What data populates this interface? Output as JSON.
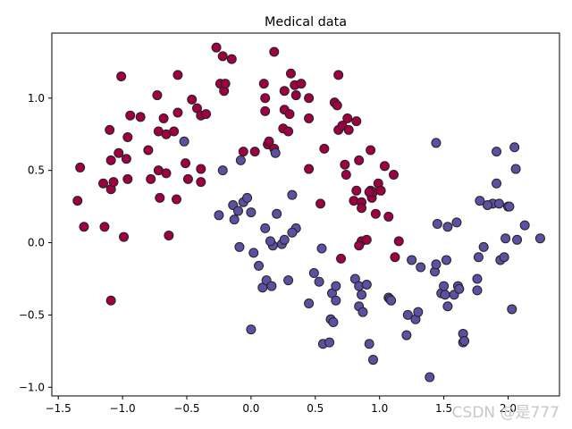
{
  "chart_data": {
    "type": "scatter",
    "title": "Medical data",
    "xlabel": "",
    "ylabel": "",
    "xlim": [
      -1.55,
      2.4
    ],
    "ylim": [
      -1.06,
      1.45
    ],
    "xticks": [
      -1.5,
      -1.0,
      -0.5,
      0.0,
      0.5,
      1.0,
      1.5,
      2.0
    ],
    "yticks": [
      -1.0,
      -0.5,
      0.0,
      0.5,
      1.0
    ],
    "grid": false,
    "series": [
      {
        "class": 1,
        "color": "#9e0142",
        "points": [
          [
            -1.33,
            0.52
          ],
          [
            -1.3,
            0.11
          ],
          [
            -1.35,
            0.29
          ],
          [
            -1.15,
            0.41
          ],
          [
            -1.14,
            0.11
          ],
          [
            -1.1,
            0.78
          ],
          [
            -1.09,
            0.57
          ],
          [
            -1.09,
            0.37
          ],
          [
            -1.07,
            0.42
          ],
          [
            -1.03,
            0.62
          ],
          [
            -1.01,
            1.15
          ],
          [
            -0.99,
            0.04
          ],
          [
            -0.96,
            0.73
          ],
          [
            -0.96,
            0.44
          ],
          [
            -0.97,
            0.58
          ],
          [
            -0.94,
            0.88
          ],
          [
            -0.86,
            0.87
          ],
          [
            -0.8,
            0.64
          ],
          [
            -0.78,
            0.44
          ],
          [
            -0.73,
            1.02
          ],
          [
            -0.72,
            0.77
          ],
          [
            -0.72,
            0.5
          ],
          [
            -0.71,
            0.31
          ],
          [
            -0.68,
            0.86
          ],
          [
            -0.66,
            0.75
          ],
          [
            -0.66,
            0.48
          ],
          [
            -0.64,
            0.05
          ],
          [
            -0.6,
            0.77
          ],
          [
            -0.58,
            0.3
          ],
          [
            -0.57,
            0.9
          ],
          [
            -0.57,
            1.16
          ],
          [
            -0.51,
            0.55
          ],
          [
            -0.49,
            0.44
          ],
          [
            -0.46,
            0.99
          ],
          [
            -0.42,
            0.93
          ],
          [
            -0.39,
            0.88
          ],
          [
            -0.39,
            0.51
          ],
          [
            -0.39,
            0.42
          ],
          [
            -0.35,
            0.89
          ],
          [
            -0.27,
            1.35
          ],
          [
            -0.24,
            1.1
          ],
          [
            -0.22,
            1.29
          ],
          [
            -0.21,
            1.05
          ],
          [
            -0.2,
            1.1
          ],
          [
            -0.15,
            1.27
          ],
          [
            -0.06,
            0.63
          ],
          [
            0.03,
            0.63
          ],
          [
            0.1,
            1.1
          ],
          [
            0.11,
            0.91
          ],
          [
            0.11,
            1.0
          ],
          [
            0.13,
            0.68
          ],
          [
            0.14,
            0.7
          ],
          [
            0.18,
            1.32
          ],
          [
            0.18,
            0.65
          ],
          [
            0.25,
            0.79
          ],
          [
            0.26,
            1.05
          ],
          [
            0.26,
            0.92
          ],
          [
            0.29,
            0.77
          ],
          [
            0.3,
            0.89
          ],
          [
            0.31,
            1.17
          ],
          [
            0.34,
            1.09
          ],
          [
            0.35,
            1.02
          ],
          [
            0.39,
            1.1
          ],
          [
            0.45,
            0.86
          ],
          [
            0.45,
            1.0
          ],
          [
            0.45,
            0.51
          ],
          [
            0.54,
            0.27
          ],
          [
            0.57,
            0.65
          ],
          [
            0.65,
            0.97
          ],
          [
            0.67,
            0.95
          ],
          [
            0.68,
            0.78
          ],
          [
            0.68,
            1.16
          ],
          [
            0.71,
            0.81
          ],
          [
            0.73,
            0.54
          ],
          [
            0.74,
            0.47
          ],
          [
            0.75,
            0.86
          ],
          [
            0.76,
            0.78
          ],
          [
            0.8,
            0.29
          ],
          [
            0.82,
            0.84
          ],
          [
            0.82,
            0.36
          ],
          [
            0.84,
            0.57
          ],
          [
            0.86,
            0.28
          ],
          [
            0.86,
            0.24
          ],
          [
            0.86,
            0.01
          ],
          [
            0.84,
            -0.02
          ],
          [
            0.7,
            -0.11
          ],
          [
            0.93,
            0.64
          ],
          [
            0.93,
            0.36
          ],
          [
            0.94,
            0.31
          ],
          [
            0.95,
            0.35
          ],
          [
            0.97,
            0.2
          ],
          [
            0.99,
            0.41
          ],
          [
            1.01,
            0.36
          ],
          [
            1.04,
            0.53
          ],
          [
            1.07,
            0.18
          ],
          [
            1.12,
            -0.1
          ],
          [
            1.15,
            0.01
          ],
          [
            1.11,
            0.47
          ],
          [
            -1.09,
            -0.4
          ],
          [
            0.92,
            0.35
          ],
          [
            0.9,
            0.02
          ]
        ]
      },
      {
        "class": 0,
        "color": "#5e4fa2",
        "points": [
          [
            -0.52,
            0.7
          ],
          [
            -0.22,
            0.5
          ],
          [
            -0.25,
            0.19
          ],
          [
            -0.13,
            0.16
          ],
          [
            -0.14,
            0.26
          ],
          [
            -0.1,
            0.22
          ],
          [
            -0.08,
            0.57
          ],
          [
            -0.09,
            -0.03
          ],
          [
            -0.06,
            0.28
          ],
          [
            -0.03,
            0.31
          ],
          [
            0.0,
            0.21
          ],
          [
            0.02,
            -0.07
          ],
          [
            0.0,
            -0.6
          ],
          [
            0.06,
            -0.16
          ],
          [
            0.09,
            -0.31
          ],
          [
            0.12,
            -0.26
          ],
          [
            0.16,
            -0.3
          ],
          [
            0.17,
            -0.02
          ],
          [
            0.2,
            0.2
          ],
          [
            0.19,
            0.62
          ],
          [
            0.24,
            -0.01
          ],
          [
            0.26,
            0.02
          ],
          [
            0.29,
            -0.26
          ],
          [
            0.32,
            0.33
          ],
          [
            0.35,
            0.1
          ],
          [
            0.11,
            0.1
          ],
          [
            0.15,
            0.01
          ],
          [
            0.45,
            -0.42
          ],
          [
            0.49,
            -0.21
          ],
          [
            0.53,
            -0.27
          ],
          [
            0.55,
            -0.04
          ],
          [
            0.56,
            -0.7
          ],
          [
            0.61,
            -0.69
          ],
          [
            0.62,
            -0.53
          ],
          [
            0.63,
            -0.35
          ],
          [
            0.64,
            -0.55
          ],
          [
            0.66,
            -0.3
          ],
          [
            0.66,
            -0.4
          ],
          [
            0.81,
            -0.25
          ],
          [
            0.84,
            -0.3
          ],
          [
            0.84,
            -0.44
          ],
          [
            0.86,
            -0.36
          ],
          [
            0.87,
            -0.48
          ],
          [
            0.9,
            -0.29
          ],
          [
            0.92,
            -0.7
          ],
          [
            0.95,
            -0.81
          ],
          [
            1.07,
            -0.38
          ],
          [
            1.08,
            -0.39
          ],
          [
            1.09,
            -0.4
          ],
          [
            1.21,
            -0.64
          ],
          [
            1.22,
            -0.5
          ],
          [
            1.25,
            -0.12
          ],
          [
            1.28,
            -0.53
          ],
          [
            1.3,
            -0.48
          ],
          [
            1.32,
            -0.17
          ],
          [
            1.39,
            -0.93
          ],
          [
            1.43,
            -0.2
          ],
          [
            1.44,
            -0.15
          ],
          [
            1.45,
            0.13
          ],
          [
            1.48,
            -0.35
          ],
          [
            1.51,
            -0.36
          ],
          [
            1.52,
            -0.12
          ],
          [
            1.53,
            -0.44
          ],
          [
            1.53,
            0.11
          ],
          [
            1.58,
            -0.36
          ],
          [
            1.6,
            0.14
          ],
          [
            1.61,
            -0.3
          ],
          [
            1.65,
            -0.63
          ],
          [
            1.65,
            -0.69
          ],
          [
            1.66,
            -0.68
          ],
          [
            1.76,
            -0.25
          ],
          [
            1.76,
            -0.33
          ],
          [
            1.77,
            -0.1
          ],
          [
            1.78,
            0.29
          ],
          [
            1.81,
            -0.03
          ],
          [
            1.88,
            0.27
          ],
          [
            1.91,
            0.41
          ],
          [
            1.91,
            0.63
          ],
          [
            1.93,
            0.27
          ],
          [
            1.94,
            -0.12
          ],
          [
            1.97,
            -0.1
          ],
          [
            1.98,
            0.03
          ],
          [
            2.0,
            0.25
          ],
          [
            2.01,
            0.25
          ],
          [
            2.03,
            -0.46
          ],
          [
            2.05,
            0.66
          ],
          [
            2.06,
            0.51
          ],
          [
            2.07,
            0.02
          ],
          [
            2.13,
            0.12
          ],
          [
            2.25,
            0.03
          ],
          [
            1.44,
            0.69
          ],
          [
            1.5,
            -0.3
          ],
          [
            1.62,
            -0.32
          ],
          [
            1.84,
            0.26
          ],
          [
            0.32,
            0.07
          ]
        ]
      }
    ]
  },
  "watermark": "CSDN @是777"
}
